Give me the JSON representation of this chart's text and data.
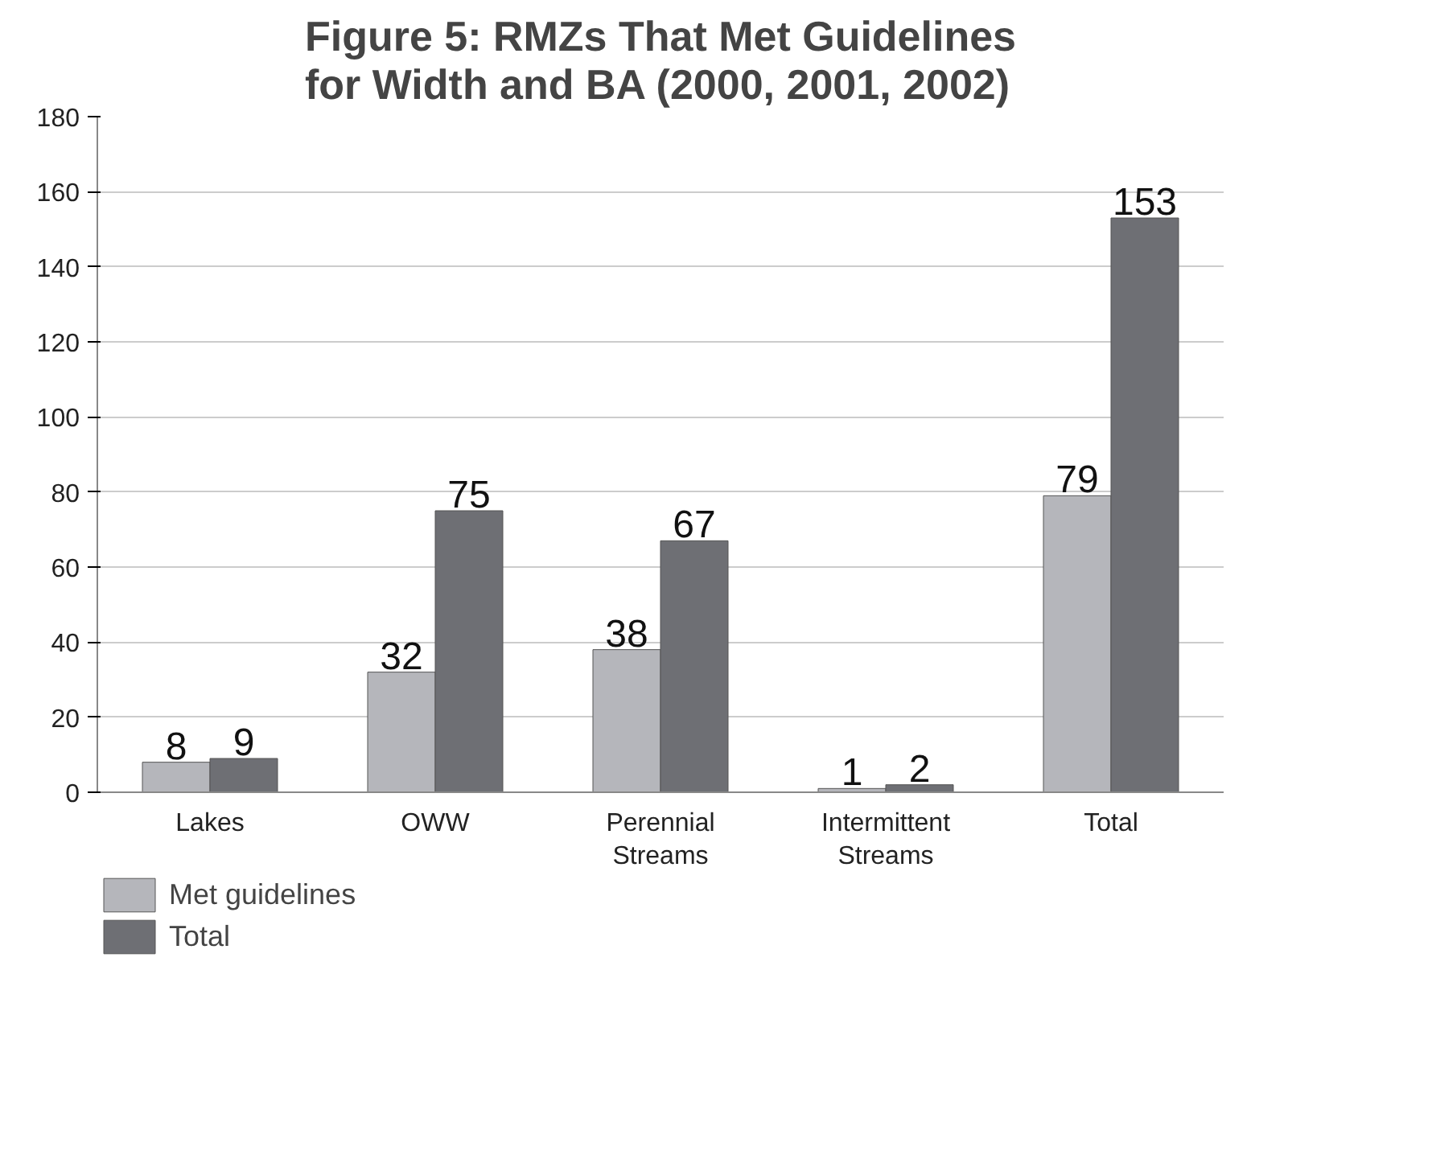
{
  "chart_data": {
    "type": "bar",
    "title": "Figure 5: RMZs That Met Guidelines\nfor Width and BA (2000, 2001, 2002)",
    "categories": [
      "Lakes",
      "OWW",
      "Perennial Streams",
      "Intermittent Streams",
      "Total"
    ],
    "series": [
      {
        "name": "Met guidelines",
        "color": "#b5b6bb",
        "values": [
          8,
          32,
          38,
          1,
          79
        ]
      },
      {
        "name": "Total",
        "color": "#6e6f74",
        "values": [
          9,
          75,
          67,
          2,
          153
        ]
      }
    ],
    "ylim": [
      0,
      180
    ],
    "yticks": [
      0,
      20,
      40,
      60,
      80,
      100,
      120,
      140,
      160,
      180
    ],
    "grid": "y",
    "legend": "bottom left",
    "data_labels": true
  }
}
